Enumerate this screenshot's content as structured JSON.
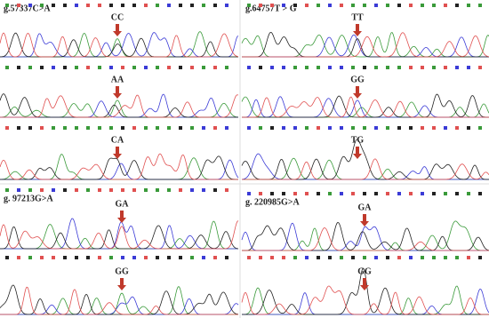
{
  "panels": [
    {
      "variant": "g.57337C>A",
      "genotypes": [
        "CC",
        "AA",
        "CA"
      ]
    },
    {
      "variant": "g.64757T > G",
      "genotypes": [
        "TT",
        "GG",
        "TG"
      ]
    },
    {
      "variant": "g. 97213G>A",
      "genotypes": [
        "GA",
        "GG"
      ]
    },
    {
      "variant": "g. 220985G>A",
      "genotypes": [
        "GA",
        "GG"
      ]
    }
  ]
}
